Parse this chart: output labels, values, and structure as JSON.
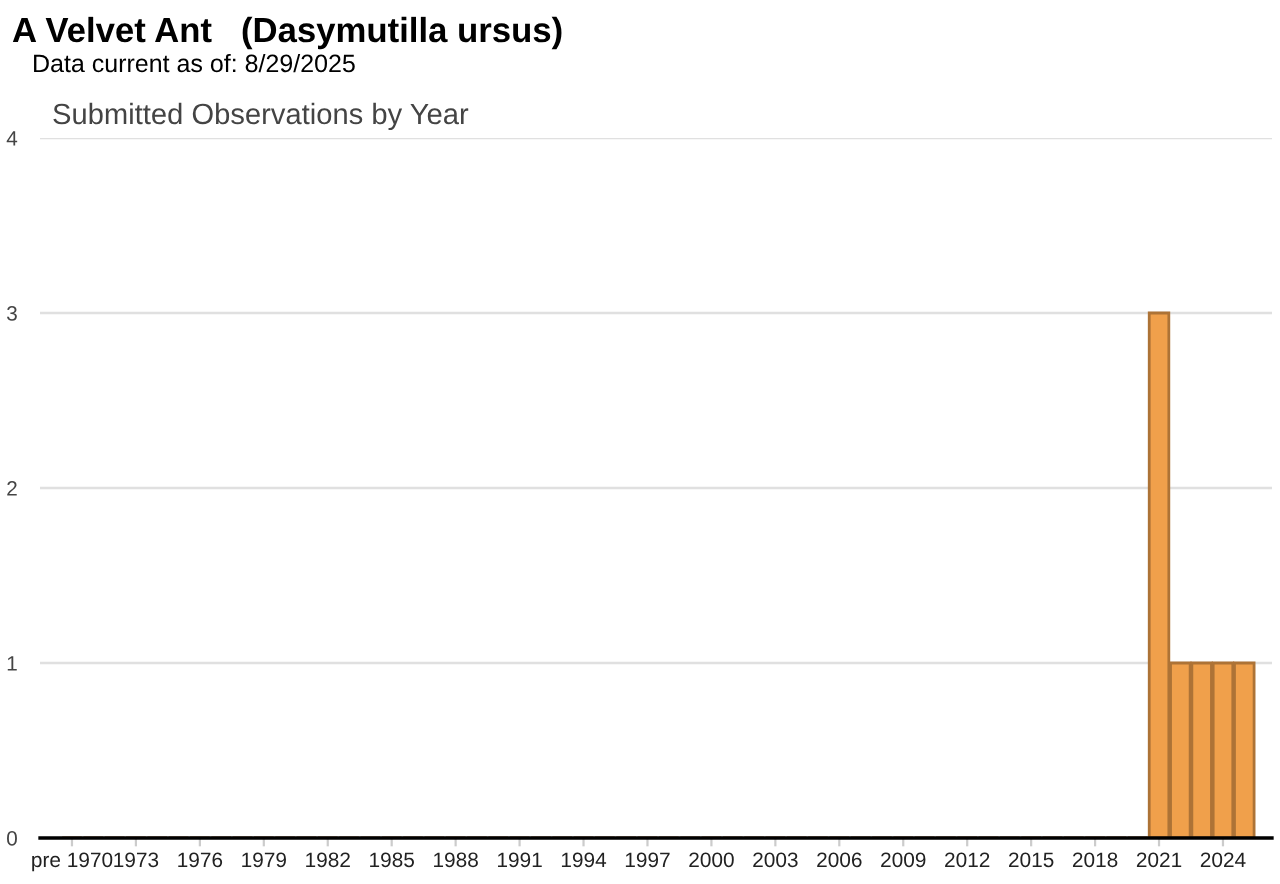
{
  "chart_data": {
    "type": "bar",
    "title": "A Velvet Ant   (Dasymutilla ursus)",
    "subtitle": "Data current as of: 8/29/2025",
    "annotations": [
      "Submitted Observations by Year"
    ],
    "categories": [
      "pre 1970",
      null,
      null,
      "1973",
      null,
      null,
      "1976",
      null,
      null,
      "1979",
      null,
      null,
      "1982",
      null,
      null,
      "1985",
      null,
      null,
      "1988",
      null,
      null,
      "1991",
      null,
      null,
      "1994",
      null,
      null,
      "1997",
      null,
      null,
      "2000",
      null,
      null,
      "2003",
      null,
      null,
      "2006",
      null,
      null,
      "2009",
      null,
      null,
      "2012",
      null,
      null,
      "2015",
      null,
      null,
      "2018",
      null,
      null,
      "2021",
      null,
      null,
      "2024",
      null
    ],
    "values": [
      0,
      0,
      0,
      0,
      0,
      0,
      0,
      0,
      0,
      0,
      0,
      0,
      0,
      0,
      0,
      0,
      0,
      0,
      0,
      0,
      0,
      0,
      0,
      0,
      0,
      0,
      0,
      0,
      0,
      0,
      0,
      0,
      0,
      0,
      0,
      0,
      0,
      0,
      0,
      0,
      0,
      0,
      0,
      0,
      0,
      0,
      0,
      0,
      0,
      0,
      0,
      3,
      1,
      1,
      1,
      1
    ],
    "color": "#f0a04b",
    "ylim": [
      0,
      4
    ],
    "yticks": [
      0,
      1,
      2,
      3,
      4
    ],
    "grid": "y",
    "legend": false
  }
}
